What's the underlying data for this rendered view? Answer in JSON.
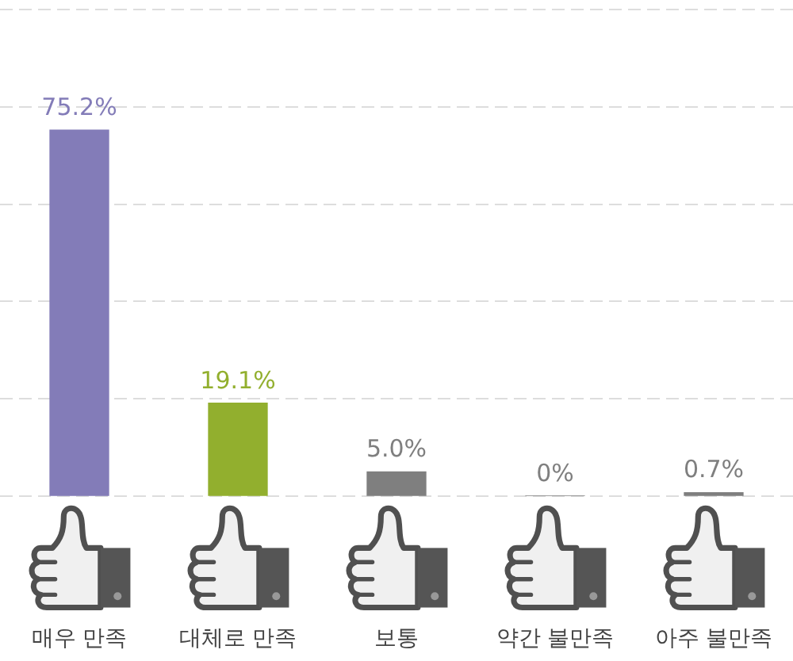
{
  "chart_data": {
    "type": "bar",
    "categories": [
      "매우 만족",
      "대체로 만족",
      "보통",
      "약간 불만족",
      "아주 불만족"
    ],
    "values": [
      75.2,
      19.1,
      5.0,
      0,
      0.7
    ],
    "colors": [
      "#837cb8",
      "#92af2e",
      "#7f7f7f",
      "#7f7f7f",
      "#7f7f7f"
    ],
    "value_labels": [
      "75.2%",
      "19.1%",
      "5.0%",
      "0%",
      "0.7%"
    ],
    "ylim": [
      0,
      100
    ],
    "yticks": [
      {
        "value": 0,
        "label": null
      },
      {
        "value": 20,
        "label": null
      },
      {
        "value": 40,
        "label": null
      },
      {
        "value": 60,
        "label": null
      },
      {
        "value": 80,
        "label": null
      },
      {
        "value": 100,
        "label": null
      }
    ],
    "grid": "y",
    "tick_labels": "x"
  }
}
